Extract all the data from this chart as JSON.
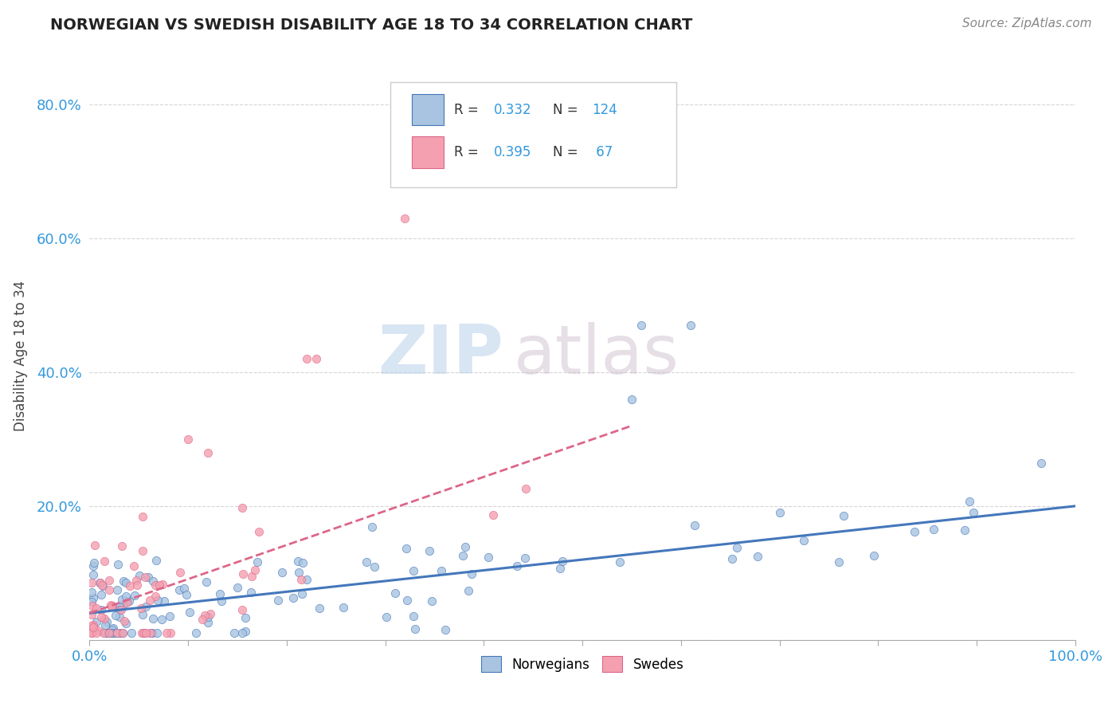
{
  "title": "NORWEGIAN VS SWEDISH DISABILITY AGE 18 TO 34 CORRELATION CHART",
  "source": "Source: ZipAtlas.com",
  "ylabel": "Disability Age 18 to 34",
  "xlim": [
    0,
    1.0
  ],
  "ylim": [
    0,
    0.85
  ],
  "xticks": [
    0.0,
    0.1,
    0.2,
    0.3,
    0.4,
    0.5,
    0.6,
    0.7,
    0.8,
    0.9,
    1.0
  ],
  "xticklabels": [
    "0.0%",
    "",
    "",
    "",
    "",
    "",
    "",
    "",
    "",
    "",
    "100.0%"
  ],
  "yticks": [
    0.0,
    0.2,
    0.4,
    0.6,
    0.8
  ],
  "yticklabels": [
    "",
    "20.0%",
    "40.0%",
    "60.0%",
    "80.0%"
  ],
  "norwegian_R": 0.332,
  "norwegian_N": 124,
  "swedish_R": 0.395,
  "swedish_N": 67,
  "norwegian_color": "#a8c4e0",
  "swedish_color": "#f4a0b0",
  "norwegian_line_color": "#4477bb",
  "swedish_line_color": "#dd6688",
  "watermark_zip": "ZIP",
  "watermark_atlas": "atlas",
  "background_color": "#ffffff",
  "grid_color": "#cccccc",
  "nor_trend_x0": 0.0,
  "nor_trend_y0": 0.04,
  "nor_trend_x1": 1.0,
  "nor_trend_y1": 0.2,
  "swe_trend_x0": 0.0,
  "swe_trend_y0": 0.04,
  "swe_trend_x1": 0.55,
  "swe_trend_y1": 0.32,
  "title_fontsize": 14,
  "source_fontsize": 11,
  "tick_fontsize": 13,
  "ylabel_fontsize": 12
}
